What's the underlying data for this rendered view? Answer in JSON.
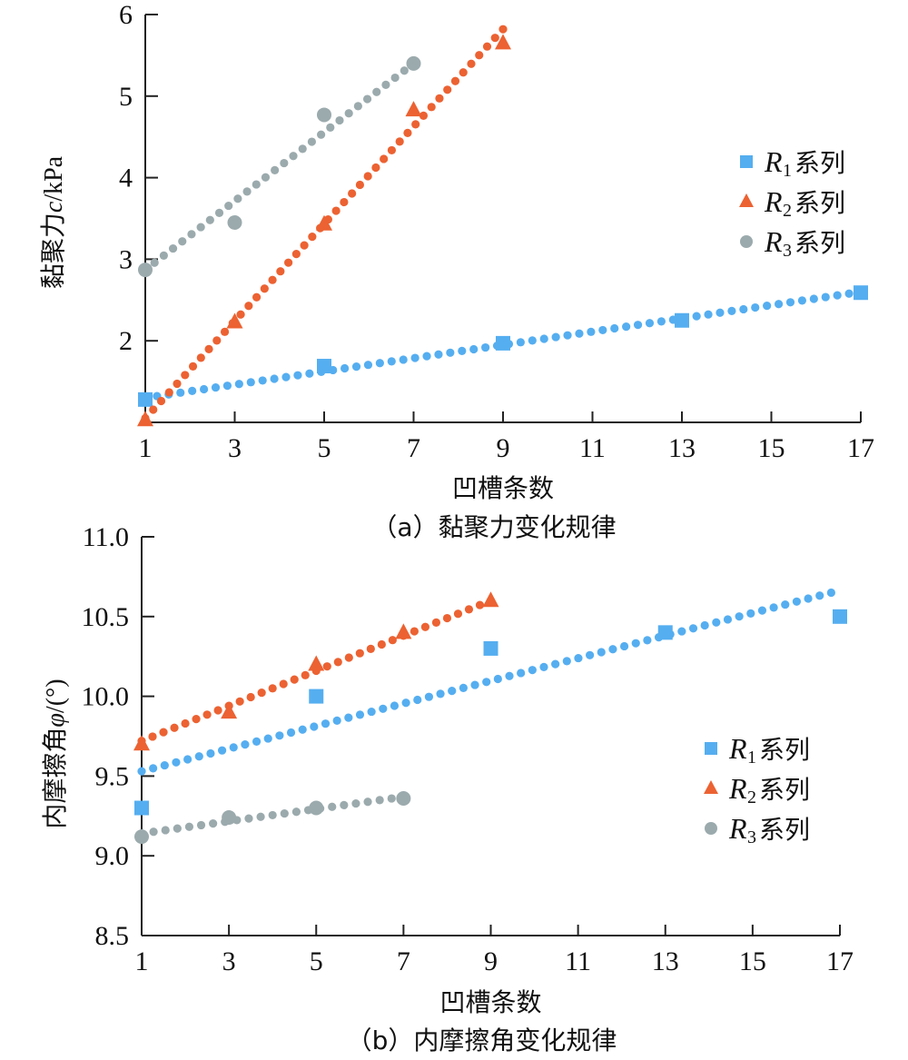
{
  "colors": {
    "R1": "#55AEF0",
    "R2": "#EC6232",
    "R3": "#9BAAAD"
  },
  "chart_data": [
    {
      "type": "scatter",
      "title": "",
      "caption": "（a）黏聚力变化规律",
      "xlabel": "凹槽条数",
      "ylabel_prefix": "黏聚力",
      "ylabel_var": "c",
      "ylabel_unit": "/kPa",
      "xlim": [
        1,
        17
      ],
      "ylim": [
        1,
        6
      ],
      "xticks": [
        1,
        3,
        5,
        7,
        9,
        11,
        13,
        15,
        17
      ],
      "yticks": [
        2,
        3,
        4,
        5,
        6
      ],
      "ytick_labels": [
        "2",
        "3",
        "4",
        "5",
        "6"
      ],
      "grid": false,
      "legend_position": "right-middle",
      "series": [
        {
          "key": "R1",
          "name": "R1系列",
          "legend_r": "R",
          "legend_sub": "1",
          "legend_text": "系列",
          "marker": "square",
          "x": [
            1,
            5,
            9,
            13,
            17
          ],
          "y": [
            1.28,
            1.69,
            1.97,
            2.25,
            2.59
          ],
          "trendline": {
            "type": "linear",
            "x": [
              1,
              17
            ],
            "y": [
              1.3,
              2.6
            ]
          }
        },
        {
          "key": "R2",
          "name": "R2系列",
          "legend_r": "R",
          "legend_sub": "2",
          "legend_text": "系列",
          "marker": "triangle",
          "x": [
            1,
            3,
            5,
            7,
            9
          ],
          "y": [
            1.03,
            2.23,
            3.43,
            4.83,
            5.65
          ],
          "trendline": {
            "type": "linear",
            "x": [
              1,
              9
            ],
            "y": [
              1.05,
              5.82
            ]
          }
        },
        {
          "key": "R3",
          "name": "R3系列",
          "legend_r": "R",
          "legend_sub": "3",
          "legend_text": "系列",
          "marker": "circle",
          "x": [
            1,
            3,
            5,
            7
          ],
          "y": [
            2.87,
            3.45,
            4.77,
            5.4
          ],
          "trendline": {
            "type": "linear",
            "x": [
              1,
              7
            ],
            "y": [
              2.87,
              5.4
            ]
          }
        }
      ]
    },
    {
      "type": "scatter",
      "title": "",
      "caption": "（b）内摩擦角变化规律",
      "xlabel": "凹槽条数",
      "ylabel_prefix": "内摩擦角",
      "ylabel_var": "φ",
      "ylabel_unit": "/(°)",
      "xlim": [
        1,
        17
      ],
      "ylim": [
        8.5,
        11.0
      ],
      "xticks": [
        1,
        3,
        5,
        7,
        9,
        11,
        13,
        15,
        17
      ],
      "yticks": [
        8.5,
        9.0,
        9.5,
        10.0,
        10.5,
        11.0
      ],
      "ytick_labels": [
        "8.5",
        "9.0",
        "9.5",
        "10.0",
        "10.5",
        "11.0"
      ],
      "grid": false,
      "legend_position": "right-middle",
      "series": [
        {
          "key": "R1",
          "name": "R1系列",
          "legend_r": "R",
          "legend_sub": "1",
          "legend_text": "系列",
          "marker": "square",
          "x": [
            1,
            5,
            9,
            13,
            17
          ],
          "y": [
            9.3,
            10.0,
            10.3,
            10.4,
            10.5
          ],
          "trendline": {
            "type": "linear",
            "x": [
              1,
              16.8
            ],
            "y": [
              9.53,
              10.65
            ]
          }
        },
        {
          "key": "R2",
          "name": "R2系列",
          "legend_r": "R",
          "legend_sub": "2",
          "legend_text": "系列",
          "marker": "triangle",
          "x": [
            1,
            3,
            5,
            7,
            9
          ],
          "y": [
            9.7,
            9.9,
            10.2,
            10.4,
            10.6
          ],
          "trendline": {
            "type": "linear",
            "x": [
              1,
              9
            ],
            "y": [
              9.72,
              10.6
            ]
          }
        },
        {
          "key": "R3",
          "name": "R3系列",
          "legend_r": "R",
          "legend_sub": "3",
          "legend_text": "系列",
          "marker": "circle",
          "x": [
            1,
            3,
            5,
            7
          ],
          "y": [
            9.12,
            9.24,
            9.3,
            9.36
          ],
          "trendline": {
            "type": "linear",
            "x": [
              1,
              7
            ],
            "y": [
              9.14,
              9.37
            ]
          }
        }
      ]
    }
  ]
}
